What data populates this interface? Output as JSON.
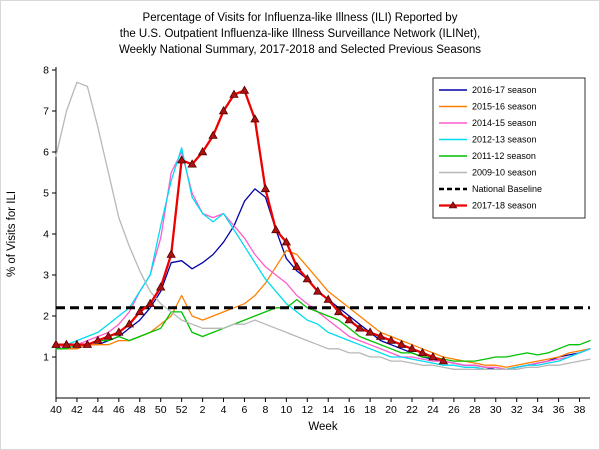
{
  "title": {
    "line1": "Percentage of Visits for Influenza-like Illness (ILI) Reported by",
    "line2": "the U.S. Outpatient Influenza-like Illness Surveillance Network (ILINet),",
    "line3": "Weekly National Summary, 2017-2018 and Selected Previous Seasons"
  },
  "chart_data": {
    "type": "line",
    "xlabel": "Week",
    "ylabel": "% of Visits for ILI",
    "ylim": [
      0,
      8
    ],
    "y_ticks": [
      1,
      2,
      3,
      4,
      5,
      6,
      7,
      8
    ],
    "x_tick_labels": [
      "40",
      "42",
      "44",
      "46",
      "48",
      "50",
      "52",
      "2",
      "4",
      "6",
      "8",
      "10",
      "12",
      "14",
      "16",
      "18",
      "20",
      "22",
      "24",
      "26",
      "28",
      "30",
      "32",
      "34",
      "36",
      "38"
    ],
    "weeks": [
      40,
      41,
      42,
      43,
      44,
      45,
      46,
      47,
      48,
      49,
      50,
      51,
      52,
      1,
      2,
      3,
      4,
      5,
      6,
      7,
      8,
      9,
      10,
      11,
      12,
      13,
      14,
      15,
      16,
      17,
      18,
      19,
      20,
      21,
      22,
      23,
      24,
      25,
      26,
      27,
      28,
      29,
      30,
      31,
      32,
      33,
      34,
      35,
      36,
      37,
      38,
      39
    ],
    "baseline": {
      "label": "National Baseline",
      "value": 2.2,
      "color": "#000000",
      "style": "dashed"
    },
    "legend_order": [
      "2016-17 season",
      "2015-16 season",
      "2014-15 season",
      "2012-13 season",
      "2011-12 season",
      "2009-10 season",
      "National Baseline",
      "2017-18 season"
    ],
    "series": [
      {
        "name": "2016-17 season",
        "color": "#0000a8",
        "values": [
          1.2,
          1.2,
          1.2,
          1.3,
          1.3,
          1.4,
          1.5,
          1.7,
          1.9,
          2.2,
          2.6,
          3.3,
          3.35,
          3.15,
          3.3,
          3.5,
          3.8,
          4.2,
          4.8,
          5.1,
          4.9,
          4.1,
          3.4,
          3.1,
          2.9,
          2.6,
          2.4,
          2.2,
          2.0,
          1.8,
          1.6,
          1.4,
          1.3,
          1.2,
          1.1,
          1.0,
          0.95,
          0.9,
          0.85,
          0.8,
          0.8,
          0.75,
          0.7,
          0.7,
          0.75,
          0.8,
          0.85,
          0.9,
          1.0,
          1.05,
          1.1,
          1.2
        ]
      },
      {
        "name": "2015-16 season",
        "color": "#ff8000",
        "values": [
          1.2,
          1.2,
          1.2,
          1.3,
          1.3,
          1.3,
          1.4,
          1.4,
          1.5,
          1.6,
          1.8,
          2.0,
          2.5,
          2.0,
          1.9,
          2.0,
          2.1,
          2.2,
          2.3,
          2.5,
          2.8,
          3.2,
          3.6,
          3.5,
          3.2,
          2.9,
          2.6,
          2.4,
          2.2,
          2.0,
          1.8,
          1.6,
          1.5,
          1.4,
          1.3,
          1.2,
          1.1,
          1.0,
          0.95,
          0.9,
          0.85,
          0.8,
          0.8,
          0.75,
          0.8,
          0.85,
          0.9,
          0.95,
          1.0,
          1.1,
          1.15,
          1.2
        ]
      },
      {
        "name": "2014-15 season",
        "color": "#ff5ccd",
        "values": [
          1.2,
          1.3,
          1.3,
          1.4,
          1.5,
          1.6,
          1.8,
          2.1,
          2.6,
          3.0,
          3.9,
          5.5,
          6.0,
          5.0,
          4.5,
          4.4,
          4.5,
          4.2,
          3.9,
          3.5,
          3.2,
          3.0,
          2.8,
          2.5,
          2.3,
          2.1,
          1.9,
          1.7,
          1.5,
          1.4,
          1.3,
          1.2,
          1.1,
          1.0,
          1.0,
          0.95,
          0.9,
          0.9,
          0.85,
          0.8,
          0.8,
          0.75,
          0.75,
          0.7,
          0.75,
          0.8,
          0.85,
          0.9,
          0.95,
          1.0,
          1.1,
          1.2
        ]
      },
      {
        "name": "2012-13 season",
        "color": "#00dcf0",
        "values": [
          1.3,
          1.3,
          1.4,
          1.5,
          1.6,
          1.8,
          2.0,
          2.2,
          2.6,
          3.0,
          4.2,
          5.3,
          6.1,
          4.9,
          4.5,
          4.3,
          4.5,
          4.1,
          3.7,
          3.3,
          2.9,
          2.6,
          2.3,
          2.1,
          1.9,
          1.8,
          1.6,
          1.5,
          1.4,
          1.3,
          1.2,
          1.1,
          1.0,
          1.0,
          0.95,
          0.9,
          0.85,
          0.8,
          0.8,
          0.75,
          0.75,
          0.7,
          0.7,
          0.7,
          0.75,
          0.8,
          0.8,
          0.85,
          0.9,
          1.0,
          1.1,
          1.2
        ]
      },
      {
        "name": "2011-12 season",
        "color": "#00c000",
        "values": [
          1.2,
          1.2,
          1.3,
          1.3,
          1.4,
          1.4,
          1.5,
          1.4,
          1.5,
          1.6,
          1.7,
          2.1,
          2.1,
          1.6,
          1.5,
          1.6,
          1.7,
          1.8,
          1.9,
          2.0,
          2.1,
          2.2,
          2.2,
          2.4,
          2.2,
          2.1,
          2.0,
          1.9,
          1.7,
          1.5,
          1.4,
          1.3,
          1.2,
          1.1,
          1.1,
          1.0,
          1.0,
          0.95,
          0.9,
          0.9,
          0.9,
          0.95,
          1.0,
          1.0,
          1.05,
          1.1,
          1.05,
          1.1,
          1.2,
          1.3,
          1.3,
          1.4
        ]
      },
      {
        "name": "2009-10 season",
        "color": "#b8b8b8",
        "values": [
          5.9,
          7.0,
          7.7,
          7.6,
          6.6,
          5.5,
          4.4,
          3.7,
          3.1,
          2.6,
          2.3,
          2.1,
          1.9,
          1.8,
          1.7,
          1.7,
          1.7,
          1.8,
          1.8,
          1.9,
          1.8,
          1.7,
          1.6,
          1.5,
          1.4,
          1.3,
          1.2,
          1.2,
          1.1,
          1.1,
          1.0,
          1.0,
          0.9,
          0.9,
          0.85,
          0.8,
          0.8,
          0.75,
          0.7,
          0.7,
          0.7,
          0.7,
          0.7,
          0.7,
          0.7,
          0.75,
          0.75,
          0.8,
          0.8,
          0.85,
          0.9,
          0.95
        ]
      },
      {
        "name": "2017-18 season",
        "color": "#ee0000",
        "marker": "triangle",
        "marker_color": "#b01010",
        "values": [
          1.3,
          1.3,
          1.3,
          1.3,
          1.4,
          1.5,
          1.6,
          1.8,
          2.1,
          2.3,
          2.7,
          3.5,
          5.8,
          5.7,
          6.0,
          6.4,
          7.0,
          7.4,
          7.5,
          6.8,
          5.1,
          4.1,
          3.8,
          3.2,
          2.9,
          2.6,
          2.4,
          2.1,
          1.9,
          1.7,
          1.6,
          1.5,
          1.4,
          1.3,
          1.2,
          1.1,
          1.0,
          0.9,
          null,
          null,
          null,
          null,
          null,
          null,
          null,
          null,
          null,
          null,
          null,
          null,
          null,
          null
        ]
      }
    ]
  }
}
